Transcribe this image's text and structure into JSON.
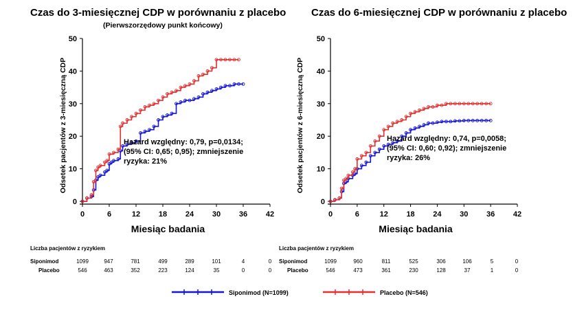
{
  "chart_data": [
    {
      "type": "line",
      "title": "Czas do 3-miesięcznej CDP w porównaniu z placebo",
      "subtitle": "(Pierwszorzędowy punkt końcowy)",
      "xlabel": "Miesiąc badania",
      "ylabel": "Odsetek pacjentów z 3-miesięczną CDP",
      "xlim": [
        0,
        42
      ],
      "ylim": [
        0,
        50
      ],
      "xticks": [
        "0",
        "6",
        "12",
        "18",
        "24",
        "30",
        "36",
        "42"
      ],
      "yticks": [
        "0",
        "10",
        "20",
        "30",
        "40",
        "50"
      ],
      "annotation": [
        "Hazard względny: 0,79, p=0,0134;",
        "(95% CI: 0,65; 0,95); zmniejszenie",
        "ryzyka: 21%"
      ],
      "series": [
        {
          "name": "Siponimod (N=1099)",
          "color": "#1515d6",
          "x": [
            0,
            1,
            2,
            2.5,
            3,
            3.5,
            4,
            5,
            5.5,
            6,
            6.5,
            7,
            8,
            8.5,
            9,
            10,
            11,
            12,
            13,
            14,
            15,
            16,
            17,
            18,
            19,
            20,
            21,
            22,
            23,
            24,
            25,
            26,
            27,
            28,
            29,
            30,
            31,
            32,
            33,
            34,
            35,
            36
          ],
          "y": [
            0,
            1,
            1.5,
            3.5,
            6.5,
            7.5,
            8,
            9,
            9.5,
            11.5,
            12,
            12.5,
            13,
            15.5,
            17,
            17.5,
            18,
            18.5,
            21,
            21.5,
            22,
            23,
            25,
            26,
            26.5,
            27,
            30,
            30.5,
            31,
            31,
            31.5,
            32,
            33,
            33.5,
            34,
            34.5,
            35,
            35.5,
            35.5,
            36,
            36,
            36
          ]
        },
        {
          "name": "Placebo (N=546)",
          "color": "#e03030",
          "x": [
            0,
            1,
            2,
            2.5,
            3,
            3.5,
            4,
            5,
            5.5,
            6,
            7,
            8,
            8.5,
            9,
            10,
            11,
            12,
            13,
            14,
            15,
            16,
            17,
            18,
            19,
            20,
            21,
            22,
            23,
            24,
            25,
            26,
            27,
            28,
            29,
            30,
            31,
            32,
            33,
            34,
            35
          ],
          "y": [
            0,
            1,
            2,
            6,
            9.5,
            10.5,
            11,
            12,
            12.5,
            14.5,
            15,
            16,
            23,
            24,
            25,
            26,
            27,
            28,
            29,
            29.5,
            30,
            31,
            32,
            33,
            33.5,
            34,
            35,
            35.5,
            36,
            37,
            38.5,
            39,
            40,
            41,
            43.5,
            43.5,
            43.5,
            43.5,
            43.5,
            43.5
          ]
        }
      ],
      "risk_table": {
        "title": "Liczba pacjentów z ryzykiem",
        "rows": [
          {
            "label": "Siponimod",
            "values": [
              "1099",
              "947",
              "781",
              "499",
              "289",
              "101",
              "4",
              "0"
            ]
          },
          {
            "label": "Placebo",
            "values": [
              "546",
              "463",
              "352",
              "223",
              "124",
              "35",
              "0",
              "0"
            ]
          }
        ]
      }
    },
    {
      "type": "line",
      "title": "Czas do 6-miesięcznej CDP w porównaniu z placebo",
      "subtitle": "",
      "xlabel": "Miesiąc badania",
      "ylabel": "Odsetek pacjentów z 6-miesięczną CDP",
      "xlim": [
        0,
        42
      ],
      "ylim": [
        0,
        50
      ],
      "xticks": [
        "0",
        "6",
        "12",
        "18",
        "24",
        "30",
        "36",
        "42"
      ],
      "yticks": [
        "0",
        "10",
        "20",
        "30",
        "40",
        "50"
      ],
      "annotation": [
        "Hazard względny: 0,74, p=0,0058;",
        "(95% CI: 0,60; 0,92); zmniejszenie",
        "ryzyka: 26%"
      ],
      "series": [
        {
          "name": "Siponimod (N=1099)",
          "color": "#1515d6",
          "x": [
            0,
            1,
            2,
            2.5,
            3,
            3.5,
            4,
            5,
            5.5,
            6,
            7,
            8,
            9,
            10,
            11,
            12,
            13,
            14,
            15,
            16,
            17,
            18,
            19,
            20,
            21,
            22,
            23,
            24,
            25,
            26,
            27,
            28,
            29,
            30,
            31,
            32,
            33,
            34,
            35,
            36
          ],
          "y": [
            0,
            0.5,
            1,
            3,
            5.5,
            6,
            7,
            8,
            8.5,
            10,
            11,
            12,
            14,
            15,
            16,
            17,
            17.5,
            18,
            18.5,
            20,
            21,
            22,
            22.5,
            23,
            23.5,
            24,
            24,
            24.3,
            24.5,
            24.5,
            24.5,
            24.7,
            24.7,
            24.8,
            24.8,
            24.8,
            24.8,
            24.8,
            24.8,
            24.8
          ]
        },
        {
          "name": "Placebo (N=546)",
          "color": "#e03030",
          "x": [
            0,
            1,
            2,
            2.5,
            3,
            3.5,
            4,
            5,
            5.5,
            6,
            7,
            8,
            9,
            10,
            11,
            12,
            13,
            14,
            15,
            16,
            17,
            18,
            19,
            20,
            21,
            22,
            23,
            24,
            25,
            26,
            27,
            28,
            29,
            30,
            31,
            32,
            33,
            34,
            35,
            36
          ],
          "y": [
            0,
            0.5,
            1,
            4,
            6.5,
            7,
            8,
            9,
            10,
            13,
            14,
            15,
            17,
            18.5,
            20,
            22,
            23,
            24,
            24.5,
            25,
            26,
            27,
            27.5,
            28,
            28.5,
            29,
            29,
            29.5,
            29.5,
            30,
            30,
            30,
            30,
            30,
            30,
            30,
            30,
            30,
            30,
            30
          ]
        }
      ],
      "risk_table": {
        "title": "Liczba pacjentów z ryzykiem",
        "rows": [
          {
            "label": "Siponimod",
            "values": [
              "1099",
              "960",
              "811",
              "525",
              "306",
              "106",
              "5",
              "0"
            ]
          },
          {
            "label": "Placebo",
            "values": [
              "546",
              "473",
              "361",
              "230",
              "128",
              "37",
              "1",
              "0"
            ]
          }
        ]
      }
    }
  ],
  "legend": [
    {
      "label": "Siponimod (N=1099)",
      "color": "#1515d6"
    },
    {
      "label": "Placebo (N=546)",
      "color": "#e03030"
    }
  ]
}
